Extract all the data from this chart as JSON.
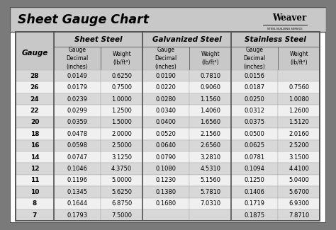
{
  "title": "Sheet Gauge Chart",
  "bg_outer": "#7a7a7a",
  "bg_white": "#ffffff",
  "bg_header": "#c8c8c8",
  "bg_row_light": "#f0f0f0",
  "bg_row_dark": "#d8d8d8",
  "border_color": "#555555",
  "col_groups": [
    "Sheet Steel",
    "Galvanized Steel",
    "Stainless Steel"
  ],
  "gauges": [
    "28",
    "26",
    "24",
    "22",
    "20",
    "18",
    "16",
    "14",
    "12",
    "11",
    "10",
    "8",
    "7"
  ],
  "sheet_steel": [
    [
      "0.0149",
      "0.6250"
    ],
    [
      "0.0179",
      "0.7500"
    ],
    [
      "0.0239",
      "1.0000"
    ],
    [
      "0.0299",
      "1.2500"
    ],
    [
      "0.0359",
      "1.5000"
    ],
    [
      "0.0478",
      "2.0000"
    ],
    [
      "0.0598",
      "2.5000"
    ],
    [
      "0.0747",
      "3.1250"
    ],
    [
      "0.1046",
      "4.3750"
    ],
    [
      "0.1196",
      "5.0000"
    ],
    [
      "0.1345",
      "5.6250"
    ],
    [
      "0.1644",
      "6.8750"
    ],
    [
      "0.1793",
      "7.5000"
    ]
  ],
  "galvanized_steel": [
    [
      "0.0190",
      "0.7810"
    ],
    [
      "0.0220",
      "0.9060"
    ],
    [
      "0.0280",
      "1.1560"
    ],
    [
      "0.0340",
      "1.4060"
    ],
    [
      "0.0400",
      "1.6560"
    ],
    [
      "0.0520",
      "2.1560"
    ],
    [
      "0.0640",
      "2.6560"
    ],
    [
      "0.0790",
      "3.2810"
    ],
    [
      "0.1080",
      "4.5310"
    ],
    [
      "0.1230",
      "5.1560"
    ],
    [
      "0.1380",
      "5.7810"
    ],
    [
      "0.1680",
      "7.0310"
    ],
    [
      "",
      ""
    ]
  ],
  "stainless_steel": [
    [
      "0.0156",
      ""
    ],
    [
      "0.0187",
      "0.7560"
    ],
    [
      "0.0250",
      "1.0080"
    ],
    [
      "0.0312",
      "1.2600"
    ],
    [
      "0.0375",
      "1.5120"
    ],
    [
      "0.0500",
      "2.0160"
    ],
    [
      "0.0625",
      "2.5200"
    ],
    [
      "0.0781",
      "3.1500"
    ],
    [
      "0.1094",
      "4.4100"
    ],
    [
      "0.1250",
      "5.0400"
    ],
    [
      "0.1406",
      "5.6700"
    ],
    [
      "0.1719",
      "6.9300"
    ],
    [
      "0.1875",
      "7.8710"
    ]
  ],
  "figw": 4.74,
  "figh": 3.25,
  "dpi": 100
}
